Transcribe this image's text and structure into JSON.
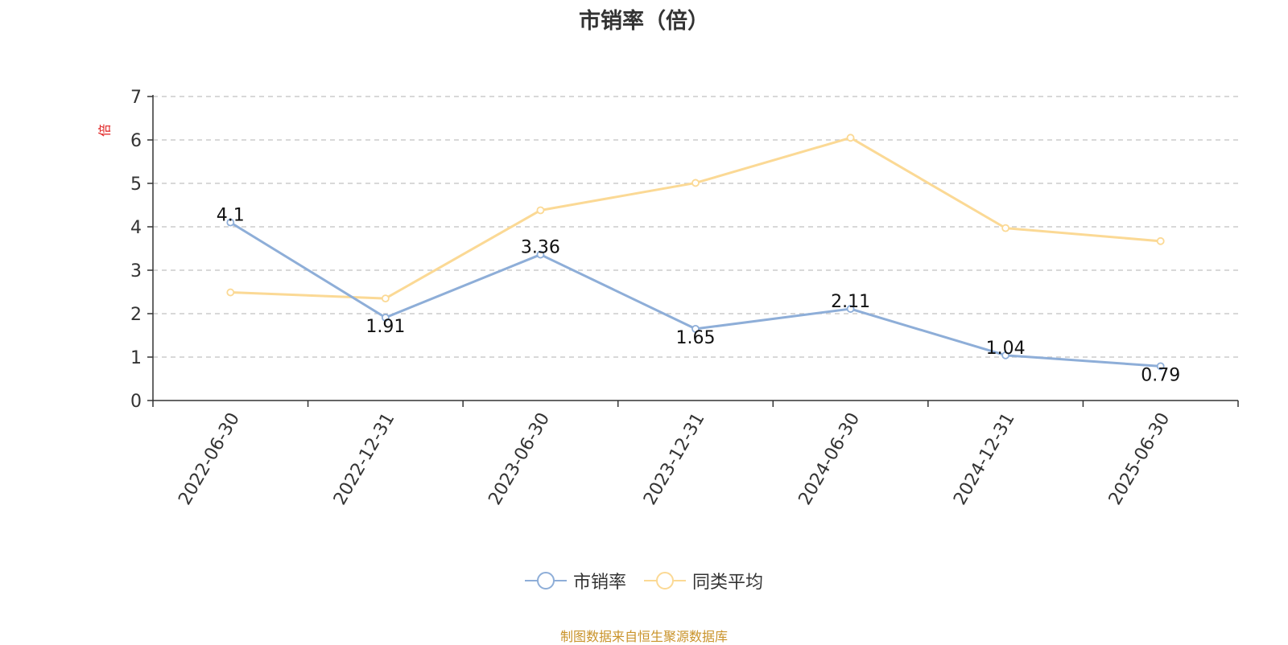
{
  "chart_data": {
    "type": "line",
    "title": "市销率（倍）",
    "ylabel": "倍",
    "xlabel": "",
    "categories": [
      "2022-06-30",
      "2022-12-31",
      "2023-06-30",
      "2023-12-31",
      "2024-06-30",
      "2024-12-31",
      "2025-06-30"
    ],
    "ylim": [
      0,
      7
    ],
    "yticks": [
      0,
      1,
      2,
      3,
      4,
      5,
      6,
      7
    ],
    "grid": true,
    "legend_position": "bottom",
    "series": [
      {
        "name": "市销率",
        "values": [
          4.1,
          1.91,
          3.36,
          1.65,
          2.11,
          1.04,
          0.79
        ],
        "labels": [
          "4.1",
          "1.91",
          "3.36",
          "1.65",
          "2.11",
          "1.04",
          "0.79"
        ],
        "color": "#8eaed8"
      },
      {
        "name": "同类平均",
        "values": [
          2.49,
          2.35,
          4.38,
          5.01,
          6.05,
          3.97,
          3.67
        ],
        "color": "#fbd995"
      }
    ]
  },
  "source_note": "制图数据来自恒生聚源数据库",
  "colors": {
    "axis": "#333333",
    "grid": "#cccccc",
    "ylabel": "#e02020"
  }
}
